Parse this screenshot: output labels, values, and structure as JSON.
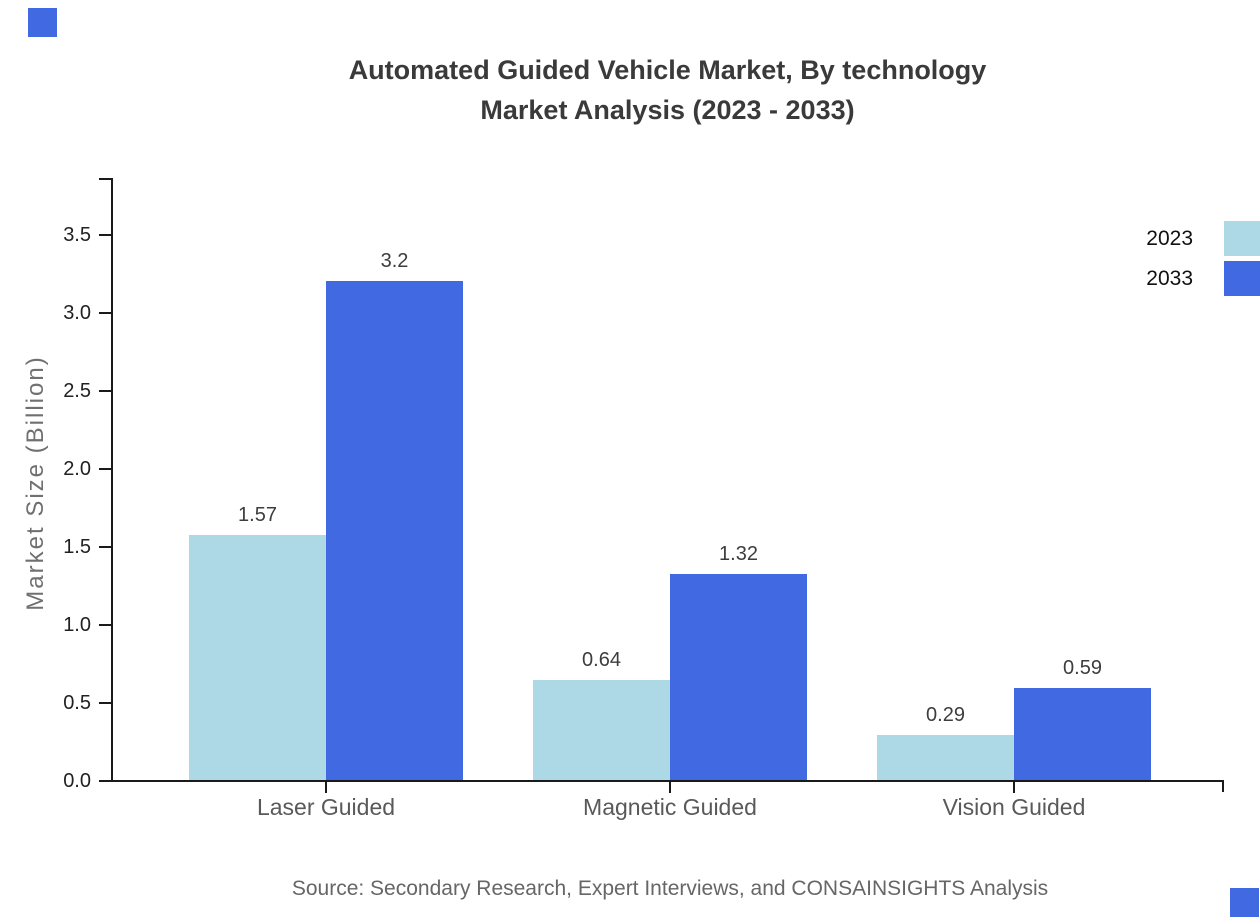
{
  "page": {
    "background": "#ffffff"
  },
  "title": {
    "line1": "Automated Guided Vehicle Market, By technology",
    "line2": "Market Analysis (2023 - 2033)"
  },
  "y_axis": {
    "label": "Market Size (Billion)",
    "tick_labels": [
      "0.0",
      "0.5",
      "1.0",
      "1.5",
      "2.0",
      "2.5",
      "3.0",
      "3.5"
    ]
  },
  "x_axis": {
    "categories": [
      "Laser Guided",
      "Magnetic Guided",
      "Vision Guided"
    ]
  },
  "legend": {
    "items": [
      {
        "label": "2023",
        "color": "#ADD8E6"
      },
      {
        "label": "2033",
        "color": "#4169E1"
      }
    ]
  },
  "source": {
    "text": "Source: Secondary Research, Expert Interviews, and CONSAINSIGHTS Analysis"
  },
  "colors": {
    "series_2023": "#ADD8E6",
    "series_2033": "#4169E1",
    "title_text": "#3a3a3a",
    "axis_line": "#1a1a1a",
    "category_text": "#595959",
    "source_text": "#666666",
    "corner_marker": "#4169E1"
  },
  "decorations": {
    "corner_squares": {
      "color": "#4169E1",
      "positions": [
        "top-left",
        "bottom-right"
      ]
    }
  },
  "chart_data": {
    "type": "bar",
    "title": "Automated Guided Vehicle Market, By technology Market Analysis (2023 - 2033)",
    "categories": [
      "Laser Guided",
      "Magnetic Guided",
      "Vision Guided"
    ],
    "series": [
      {
        "name": "2023",
        "color": "#ADD8E6",
        "values": [
          1.57,
          0.64,
          0.29
        ],
        "labels": [
          "1.57",
          "0.64",
          "0.29"
        ]
      },
      {
        "name": "2033",
        "color": "#4169E1",
        "values": [
          3.2,
          1.32,
          0.59
        ],
        "labels": [
          "3.2",
          "1.32",
          "0.59"
        ]
      }
    ],
    "xlabel": "",
    "ylabel": "Market Size (Billion)",
    "ylim": [
      0,
      3.8
    ],
    "yticks": [
      0.0,
      0.5,
      1.0,
      1.5,
      2.0,
      2.5,
      3.0,
      3.5
    ],
    "grid": false,
    "legend_position": "top-right",
    "value_labels_shown": true
  }
}
